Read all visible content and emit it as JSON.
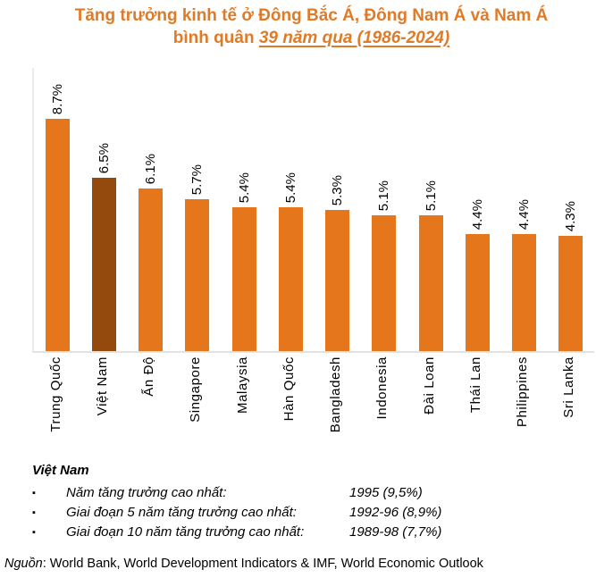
{
  "title": {
    "line1": "Tăng trưởng kinh tế ở Đông Bắc Á, Đông Nam Á và Nam Á",
    "line2_prefix": "bình quân ",
    "line2_emphasis": "39 năm qua (1986-2024)",
    "color": "#DF7B27"
  },
  "chart_data": {
    "type": "bar",
    "title": "Tăng trưởng kinh tế ở Đông Bắc Á, Đông Nam Á và Nam Á bình quân 39 năm qua (1986-2024)",
    "categories": [
      "Trung Quốc",
      "Việt Nam",
      "Ấn Độ",
      "Singapore",
      "Malaysia",
      "Hàn Quốc",
      "Bangladesh",
      "Indonesia",
      "Đài Loan",
      "Thái Lan",
      "Philippines",
      "Sri Lanka"
    ],
    "values": [
      8.7,
      6.5,
      6.1,
      5.7,
      5.4,
      5.4,
      5.3,
      5.1,
      5.1,
      4.4,
      4.4,
      4.3
    ],
    "value_labels": [
      "8.7%",
      "6.5%",
      "6.1%",
      "5.7%",
      "5.4%",
      "5.4%",
      "5.3%",
      "5.1%",
      "5.1%",
      "4.4%",
      "4.4%",
      "4.3%"
    ],
    "xlabel": "",
    "ylabel": "",
    "ylim": [
      0,
      9
    ],
    "grid": false,
    "legend": false,
    "value_label_rotation": -90,
    "category_label_rotation": -90,
    "bar_color": "#E6761B",
    "highlight_color": "#954A0D",
    "highlight_index": 1,
    "highlight_category": "Việt Nam"
  },
  "notes": {
    "heading": "Việt Nam",
    "bullet": "▪",
    "items": [
      {
        "label": "Năm tăng trưởng cao nhất:",
        "value": "1995 (9,5%)"
      },
      {
        "label": "Giai đoạn 5 năm tăng trưởng cao nhất:",
        "value": "1992-96 (8,9%)"
      },
      {
        "label": "Giai đoạn 10 năm tăng trưởng cao nhất:",
        "value": "1989-98 (7,7%)"
      }
    ]
  },
  "source": {
    "prefix": "Nguồn",
    "text": ": World Bank, World Development Indicators & IMF, World Economic Outlook"
  }
}
